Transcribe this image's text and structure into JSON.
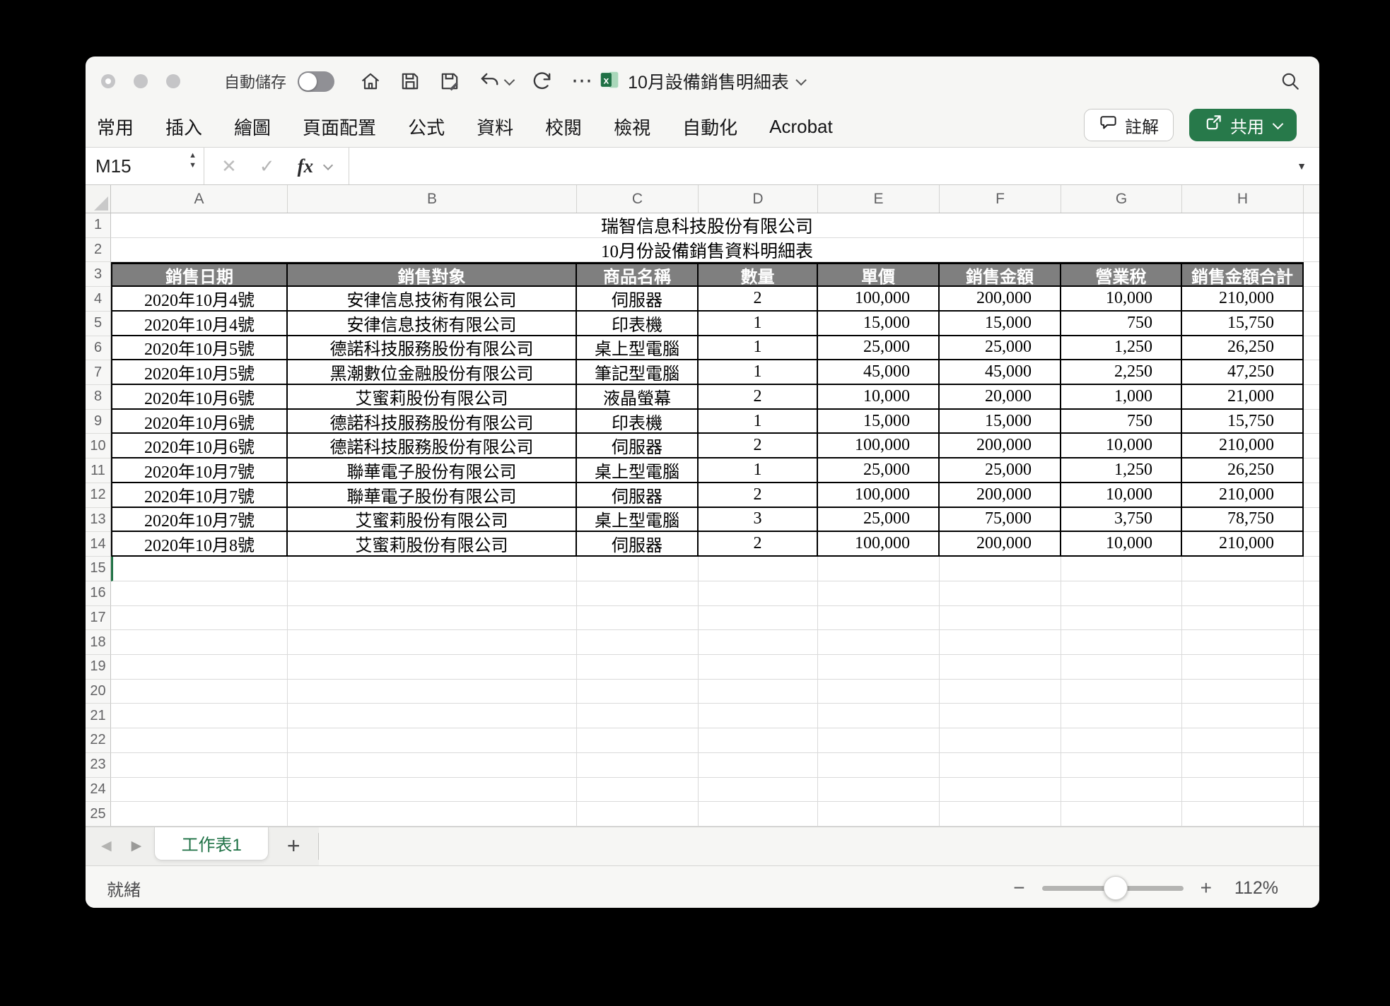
{
  "window": {
    "titlebar": {
      "autosave_label": "自動儲存",
      "doc_title": "10月設備銷售明細表"
    },
    "ribbon": {
      "tabs": [
        "常用",
        "插入",
        "繪圖",
        "頁面配置",
        "公式",
        "資料",
        "校閱",
        "檢視",
        "自動化",
        "Acrobat"
      ],
      "comment_label": "註解",
      "share_label": "共用"
    },
    "formula_bar": {
      "name_box": "M15",
      "fx_label": "fx",
      "formula_value": ""
    },
    "sheet": {
      "column_letters": [
        "A",
        "B",
        "C",
        "D",
        "E",
        "F",
        "G",
        "H"
      ],
      "total_rows": 25,
      "selected_row": 15,
      "title_row1": "瑞智信息科技股份有限公司",
      "title_row2": "10月份設備銷售資料明細表",
      "header_row": [
        "銷售日期",
        "銷售對象",
        "商品名稱",
        "數量",
        "單價",
        "銷售金額",
        "營業稅",
        "銷售金額合計"
      ],
      "records": [
        [
          "2020年10月4號",
          "安律信息技術有限公司",
          "伺服器",
          "2",
          "100,000",
          "200,000",
          "10,000",
          "210,000"
        ],
        [
          "2020年10月4號",
          "安律信息技術有限公司",
          "印表機",
          "1",
          "15,000",
          "15,000",
          "750",
          "15,750"
        ],
        [
          "2020年10月5號",
          "德諾科技服務股份有限公司",
          "桌上型電腦",
          "1",
          "25,000",
          "25,000",
          "1,250",
          "26,250"
        ],
        [
          "2020年10月5號",
          "黑潮數位金融股份有限公司",
          "筆記型電腦",
          "1",
          "45,000",
          "45,000",
          "2,250",
          "47,250"
        ],
        [
          "2020年10月6號",
          "艾蜜莉股份有限公司",
          "液晶螢幕",
          "2",
          "10,000",
          "20,000",
          "1,000",
          "21,000"
        ],
        [
          "2020年10月6號",
          "德諾科技服務股份有限公司",
          "印表機",
          "1",
          "15,000",
          "15,000",
          "750",
          "15,750"
        ],
        [
          "2020年10月6號",
          "德諾科技服務股份有限公司",
          "伺服器",
          "2",
          "100,000",
          "200,000",
          "10,000",
          "210,000"
        ],
        [
          "2020年10月7號",
          "聯華電子股份有限公司",
          "桌上型電腦",
          "1",
          "25,000",
          "25,000",
          "1,250",
          "26,250"
        ],
        [
          "2020年10月7號",
          "聯華電子股份有限公司",
          "伺服器",
          "2",
          "100,000",
          "200,000",
          "10,000",
          "210,000"
        ],
        [
          "2020年10月7號",
          "艾蜜莉股份有限公司",
          "桌上型電腦",
          "3",
          "25,000",
          "75,000",
          "3,750",
          "78,750"
        ],
        [
          "2020年10月8號",
          "艾蜜莉股份有限公司",
          "伺服器",
          "2",
          "100,000",
          "200,000",
          "10,000",
          "210,000"
        ]
      ]
    },
    "tab_bar": {
      "sheet_tab": "工作表1",
      "add_label": "+"
    },
    "status_bar": {
      "status": "就緒",
      "zoom": "112%"
    }
  },
  "glyphs": {
    "more": "⋯",
    "cancel": "✕",
    "enter": "✓",
    "dropdown": "▼",
    "step_up": "▲",
    "step_down": "▼",
    "prev": "◀",
    "next": "▶",
    "minus": "−",
    "plus": "+"
  },
  "colors": {
    "accent_green": "#217346",
    "share_button_green": "#27794a",
    "table_header_fill": "#7f7f7f"
  }
}
